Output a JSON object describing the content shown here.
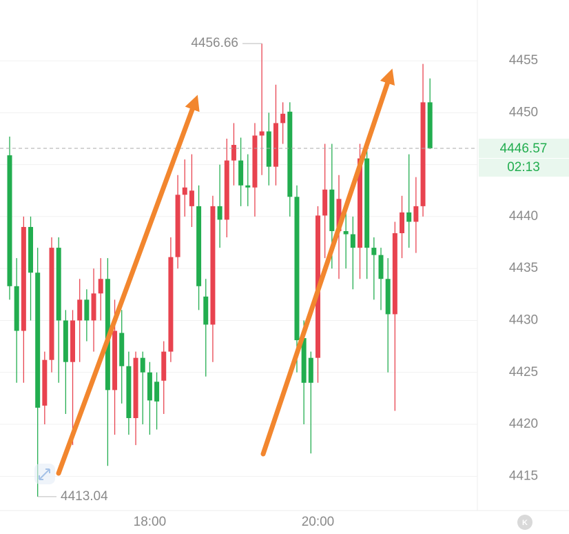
{
  "chart_data": {
    "type": "candlestick",
    "categories": [
      null,
      null,
      null,
      null,
      null,
      null,
      null,
      null,
      null,
      null,
      null,
      null,
      null,
      null,
      null,
      null,
      null,
      null,
      null,
      null,
      "18:00",
      null,
      null,
      null,
      null,
      null,
      null,
      null,
      null,
      null,
      null,
      null,
      null,
      null,
      null,
      null,
      null,
      null,
      null,
      null,
      null,
      null,
      null,
      null,
      "20:00",
      null,
      null,
      null,
      null,
      null,
      null,
      null,
      null,
      null,
      null,
      null,
      null,
      null,
      null,
      null,
      null
    ],
    "open": [
      4445.9,
      4433.3,
      4429,
      4439,
      4434.6,
      4421.8,
      4426.2,
      4437,
      4430,
      4426,
      4430,
      4432,
      4430,
      4432.6,
      4434,
      4423.3,
      4428.8,
      4425.6,
      4420.6,
      4426.4,
      4425,
      4424.1,
      4424.2,
      4427,
      4436.1,
      4442.1,
      4441,
      4441,
      4432.3,
      4429.6,
      4441,
      4439.7,
      4445.4,
      4445.4,
      4443,
      4442.8,
      4447.8,
      4448.2,
      4444.8,
      4449,
      4450.1,
      4441.9,
      4428.3,
      4426.4,
      4426.4,
      4440.1,
      4442.6,
      4438.6,
      4438.6,
      4438.3,
      4437,
      4445.6,
      4437,
      4436.3,
      4434,
      4430.6,
      4438.4,
      4440.4,
      4439.5,
      4441,
      4451
    ],
    "high": [
      4447.7,
      4436,
      4440,
      4440,
      4437,
      4427,
      4438,
      4438,
      4431,
      4431,
      4434,
      4433,
      4435,
      4436,
      4436,
      4432,
      4431,
      4427,
      4427,
      4427,
      4426,
      4425,
      4428,
      4438,
      4444,
      4445.5,
      4446,
      4443,
      4434,
      4442,
      4445,
      4447.5,
      4449,
      4447.6,
      4446,
      4449,
      4456.66,
      4450,
      4452.7,
      4451,
      4451,
      4443,
      4430,
      4427,
      4441,
      4447,
      4447,
      4444,
      4441,
      4440,
      4447,
      4447,
      4438,
      4437,
      4436,
      4439.5,
      4442,
      4446,
      4443.8,
      4454.7,
      4453.3
    ],
    "low": [
      4432,
      4424,
      4424,
      4430,
      4413.04,
      4420,
      4425,
      4424,
      4421,
      4418,
      4426,
      4428,
      4427,
      4430,
      4416,
      4419,
      4422,
      4419,
      4418,
      4420,
      4419,
      4419.5,
      4421,
      4426,
      4435,
      4440,
      4439,
      4431,
      4424.6,
      4426,
      4437,
      4438,
      4443,
      4441,
      4441,
      4440,
      4444,
      4443,
      4443,
      4447,
      4440,
      4425,
      4420,
      4417.2,
      4424,
      4436,
      4435,
      4434,
      4435,
      4433,
      4434,
      4434,
      4432,
      4431,
      4425,
      4421.3,
      4436,
      4437,
      4436.5,
      4440,
      4446.5
    ],
    "close": [
      4433.3,
      4429,
      4439,
      4434.6,
      4421.6,
      4426.2,
      4437,
      4430,
      4426,
      4430,
      4432,
      4430,
      4432.6,
      4434,
      4423.3,
      4429,
      4425.6,
      4420.6,
      4426.4,
      4425,
      4422.3,
      4422.2,
      4427,
      4436.1,
      4442.1,
      4442.8,
      4442.5,
      4433.3,
      4429.6,
      4441,
      4439.7,
      4445.4,
      4446.9,
      4443,
      4442.8,
      4447.8,
      4448.2,
      4444.8,
      4449,
      4449.9,
      4441.9,
      4428.1,
      4424,
      4424,
      4440.1,
      4442.6,
      4438.6,
      4441.7,
      4438.3,
      4437,
      4445.6,
      4437,
      4436.3,
      4434,
      4430.6,
      4438.4,
      4440.4,
      4439.5,
      4441,
      4451,
      4446.57
    ],
    "up_color": "#e8434f",
    "down_color": "#22ad4f",
    "ylim": [
      4411.7,
      4460.85
    ],
    "yticks": [
      4415,
      4420,
      4425,
      4430,
      4435,
      4440,
      4445,
      4450,
      4455
    ],
    "grid": true,
    "max_annotation": 4456.66,
    "min_annotation": 4413.04,
    "last_price": 4446.57,
    "countdown": "02:13"
  }
}
